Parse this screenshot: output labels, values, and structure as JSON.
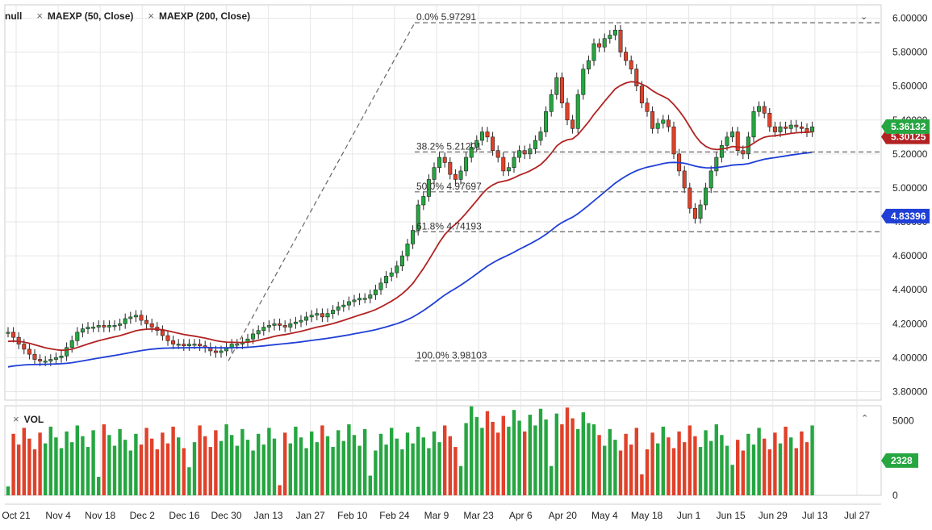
{
  "legend": {
    "items": [
      {
        "label": "null"
      },
      {
        "label": "MAEXP (50, Close)"
      },
      {
        "label": "MAEXP (200, Close)"
      }
    ],
    "close_glyph": "×",
    "collapse_glyph": "⌄",
    "volume_label": "VOL",
    "volume_collapse_glyph": "⌃"
  },
  "colors": {
    "up": "#26a641",
    "down": "#e0412a",
    "ma50": "#b22222",
    "ma200": "#1f3fd6",
    "grid": "#e6e6e6",
    "fib": "#666666",
    "last_price_bg": "#26a641",
    "ma50_bg": "#b22222",
    "ma200_bg": "#1f3fd6"
  },
  "chart_data": {
    "type": "candlestick",
    "y_ticks": [
      "6.00000",
      "5.80000",
      "5.60000",
      "5.40000",
      "5.20000",
      "5.00000",
      "4.80000",
      "4.60000",
      "4.40000",
      "4.20000",
      "4.00000",
      "3.80000"
    ],
    "ylim": [
      3.75,
      6.05
    ],
    "x_ticks": [
      "Oct 21",
      "Nov 4",
      "Nov 18",
      "Dec 2",
      "Dec 16",
      "Dec 30",
      "Jan 13",
      "Jan 27",
      "Feb 10",
      "Feb 24",
      "Mar 9",
      "Mar 23",
      "Apr 6",
      "Apr 20",
      "May 4",
      "May 18",
      "Jun 1",
      "Jun 15",
      "Jun 29",
      "Jul 13",
      "Jul 27"
    ],
    "price_badges": {
      "last": "5.36132",
      "ma50": "5.30125",
      "ma200": "4.83396"
    },
    "fib_levels": [
      {
        "label": "0.0% 5.97291",
        "value": 5.97291
      },
      {
        "label": "38.2% 5.21201",
        "value": 5.21201
      },
      {
        "label": "50.0% 4.97697",
        "value": 4.97697
      },
      {
        "label": "61.8% 4.74193",
        "value": 4.74193
      },
      {
        "label": "100.0% 3.98103",
        "value": 3.98103
      }
    ],
    "volume_ticks": [
      "5000",
      "0"
    ],
    "volume_ylim": [
      0,
      6000
    ],
    "volume_last": "2328",
    "closes": [
      4.15,
      4.12,
      4.08,
      4.05,
      4.02,
      3.99,
      3.98,
      3.98,
      3.99,
      4.0,
      4.01,
      4.06,
      4.1,
      4.15,
      4.17,
      4.18,
      4.18,
      4.19,
      4.18,
      4.19,
      4.19,
      4.2,
      4.23,
      4.24,
      4.25,
      4.22,
      4.2,
      4.18,
      4.16,
      4.13,
      4.1,
      4.08,
      4.08,
      4.07,
      4.08,
      4.08,
      4.07,
      4.06,
      4.04,
      4.03,
      4.04,
      4.06,
      4.08,
      4.08,
      4.09,
      4.11,
      4.14,
      4.16,
      4.18,
      4.19,
      4.2,
      4.19,
      4.18,
      4.2,
      4.21,
      4.22,
      4.24,
      4.25,
      4.26,
      4.24,
      4.26,
      4.28,
      4.3,
      4.31,
      4.33,
      4.34,
      4.35,
      4.35,
      4.37,
      4.4,
      4.44,
      4.48,
      4.5,
      4.54,
      4.6,
      4.67,
      4.75,
      4.9,
      4.95,
      5.05,
      5.12,
      5.18,
      5.15,
      5.08,
      5.05,
      5.1,
      5.18,
      5.24,
      5.28,
      5.33,
      5.3,
      5.22,
      5.18,
      5.1,
      5.12,
      5.18,
      5.22,
      5.2,
      5.23,
      5.28,
      5.33,
      5.45,
      5.55,
      5.65,
      5.5,
      5.4,
      5.35,
      5.55,
      5.7,
      5.75,
      5.85,
      5.83,
      5.88,
      5.9,
      5.93,
      5.8,
      5.75,
      5.7,
      5.6,
      5.5,
      5.45,
      5.35,
      5.38,
      5.4,
      5.36,
      5.2,
      5.1,
      5.0,
      4.88,
      4.82,
      4.9,
      5.0,
      5.1,
      5.18,
      5.25,
      5.3,
      5.33,
      5.22,
      5.2,
      5.3,
      5.45,
      5.48,
      5.44,
      5.36,
      5.33,
      5.36,
      5.35,
      5.37,
      5.36,
      5.35,
      5.33,
      5.36
    ]
  }
}
